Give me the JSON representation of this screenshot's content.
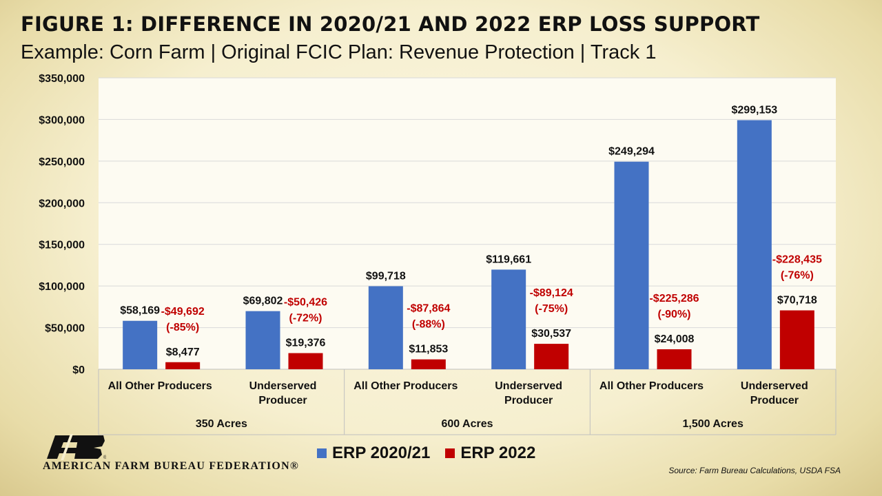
{
  "header": {
    "title": "FIGURE 1: DIFFERENCE IN 2020/21 AND 2022 ERP LOSS SUPPORT",
    "subtitle": "Example:  Corn Farm | Original FCIC Plan: Revenue Protection | Track 1"
  },
  "footer": {
    "org_name": "AMERICAN FARM BUREAU FEDERATION®",
    "logo_text": "FB",
    "source": "Source: Farm Bureau Calculations, USDA FSA"
  },
  "colors": {
    "erp_2020_21": "#4472C4",
    "erp_2022": "#C00000",
    "change_label": "#C00000"
  },
  "chart_data": {
    "type": "bar",
    "title": "",
    "ylabel": "",
    "ylim": [
      0,
      350000
    ],
    "yticks": [
      "$0",
      "$50,000",
      "$100,000",
      "$150,000",
      "$200,000",
      "$250,000",
      "$300,000",
      "$350,000"
    ],
    "grid": true,
    "legend_position": "bottom",
    "groups": [
      "350 Acres",
      "600 Acres",
      "1,500 Acres"
    ],
    "categories": [
      [
        "All Other Producers"
      ],
      [
        "Underserved",
        "Producer"
      ],
      [
        "All Other Producers"
      ],
      [
        "Underserved",
        "Producer"
      ],
      [
        "All Other Producers"
      ],
      [
        "Underserved",
        "Producer"
      ]
    ],
    "series": [
      {
        "name": "ERP 2020/21",
        "values": [
          58169,
          69802,
          99718,
          119661,
          249294,
          299153
        ],
        "labels": [
          "$58,169",
          "$69,802",
          "$99,718",
          "$119,661",
          "$249,294",
          "$299,153"
        ]
      },
      {
        "name": "ERP 2022",
        "values": [
          8477,
          19376,
          11853,
          30537,
          24008,
          70718
        ],
        "labels": [
          "$8,477",
          "$19,376",
          "$11,853",
          "$30,537",
          "$24,008",
          "$70,718"
        ]
      }
    ],
    "change_annotations": [
      [
        "-$49,692",
        "(-85%)"
      ],
      [
        "-$50,426",
        "(-72%)"
      ],
      [
        "-$87,864",
        "(-88%)"
      ],
      [
        "-$89,124",
        "(-75%)"
      ],
      [
        "-$225,286",
        "(-90%)"
      ],
      [
        "-$228,435",
        "(-76%)"
      ]
    ]
  }
}
